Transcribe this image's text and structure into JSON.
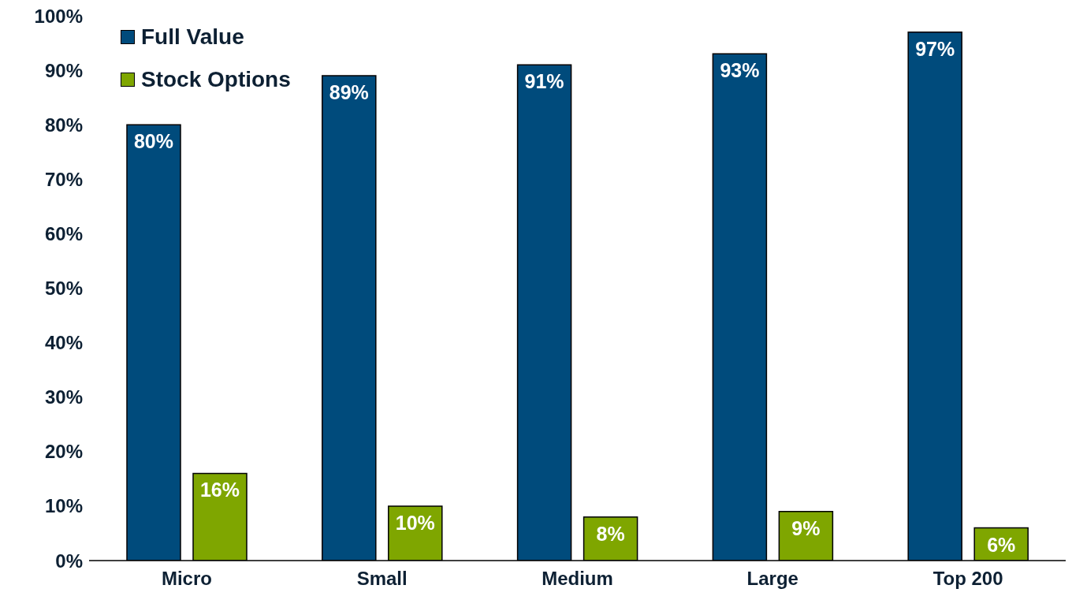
{
  "chart_data": {
    "type": "bar",
    "categories": [
      "Micro",
      "Small",
      "Medium",
      "Large",
      "Top 200"
    ],
    "series": [
      {
        "name": "Full Value",
        "color": "#004b7c",
        "values": [
          80,
          89,
          91,
          93,
          97
        ],
        "value_labels": [
          "80%",
          "89%",
          "91%",
          "93%",
          "97%"
        ]
      },
      {
        "name": "Stock Options",
        "color": "#7fa600",
        "values": [
          16,
          10,
          8,
          9,
          6
        ],
        "value_labels": [
          "16%",
          "10%",
          "8%",
          "9%",
          "6%"
        ]
      }
    ],
    "ylim": [
      0,
      100
    ],
    "yticks": [
      {
        "value": 0,
        "label": "0%"
      },
      {
        "value": 10,
        "label": "10%"
      },
      {
        "value": 20,
        "label": "20%"
      },
      {
        "value": 30,
        "label": "30%"
      },
      {
        "value": 40,
        "label": "40%"
      },
      {
        "value": 50,
        "label": "50%"
      },
      {
        "value": 60,
        "label": "60%"
      },
      {
        "value": 70,
        "label": "70%"
      },
      {
        "value": 80,
        "label": "80%"
      },
      {
        "value": 90,
        "label": "90%"
      },
      {
        "value": 100,
        "label": "100%"
      }
    ],
    "grid": false,
    "legend": "top left"
  }
}
